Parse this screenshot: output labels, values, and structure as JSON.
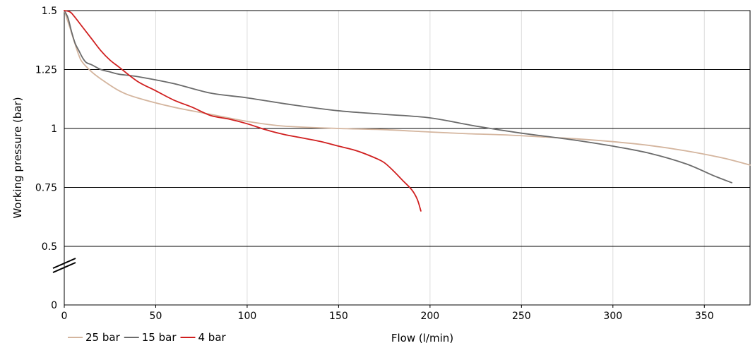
{
  "chart_data": {
    "type": "line",
    "xlabel": "Flow (l/min)",
    "ylabel": "Working pressure (bar)",
    "xlim": [
      0,
      375
    ],
    "xticks": [
      0,
      50,
      100,
      150,
      200,
      250,
      300,
      350
    ],
    "xtick_labels": [
      "0",
      "50",
      "100",
      "150",
      "200",
      "250",
      "300",
      "350"
    ],
    "yticks": [
      0,
      0.5,
      0.75,
      1,
      1.25,
      1.5
    ],
    "ytick_labels": [
      "0",
      "0.5",
      "0.75",
      "1",
      "1.25",
      "1.5"
    ],
    "y_axis_break": true,
    "y_axis_break_between": [
      0,
      0.5
    ],
    "grid": {
      "horizontal": true,
      "vertical": true
    },
    "legend_position": "bottom-left",
    "series": [
      {
        "name": "25 bar",
        "color": "#d4b59e",
        "x": [
          0,
          3,
          5,
          8,
          10,
          15,
          20,
          30,
          40,
          60,
          80,
          100,
          120,
          150,
          175,
          200,
          220,
          240,
          260,
          280,
          300,
          320,
          340,
          360,
          375
        ],
        "y": [
          1.5,
          1.43,
          1.38,
          1.31,
          1.28,
          1.24,
          1.21,
          1.16,
          1.13,
          1.09,
          1.06,
          1.03,
          1.01,
          1.0,
          0.995,
          0.985,
          0.978,
          0.973,
          0.965,
          0.956,
          0.944,
          0.928,
          0.905,
          0.875,
          0.845
        ]
      },
      {
        "name": "15 bar",
        "color": "#6b6b6b",
        "x": [
          0,
          2,
          4,
          6,
          8,
          10,
          12,
          15,
          20,
          25,
          30,
          40,
          60,
          80,
          100,
          125,
          150,
          175,
          200,
          225,
          250,
          275,
          300,
          320,
          340,
          355,
          365
        ],
        "y": [
          1.5,
          1.47,
          1.41,
          1.36,
          1.33,
          1.3,
          1.28,
          1.27,
          1.25,
          1.24,
          1.23,
          1.22,
          1.19,
          1.15,
          1.13,
          1.1,
          1.075,
          1.06,
          1.045,
          1.01,
          0.98,
          0.955,
          0.925,
          0.895,
          0.85,
          0.8,
          0.77
        ]
      },
      {
        "name": "4 bar",
        "color": "#d01f1f",
        "x": [
          0,
          3,
          5,
          10,
          15,
          20,
          25,
          30,
          40,
          50,
          60,
          70,
          80,
          90,
          100,
          110,
          120,
          130,
          140,
          150,
          160,
          170,
          175,
          180,
          185,
          190,
          193,
          195
        ],
        "y": [
          1.5,
          1.495,
          1.48,
          1.43,
          1.38,
          1.33,
          1.29,
          1.26,
          1.2,
          1.16,
          1.12,
          1.09,
          1.055,
          1.04,
          1.02,
          0.995,
          0.975,
          0.96,
          0.945,
          0.925,
          0.905,
          0.875,
          0.855,
          0.82,
          0.78,
          0.74,
          0.7,
          0.65
        ]
      }
    ]
  }
}
